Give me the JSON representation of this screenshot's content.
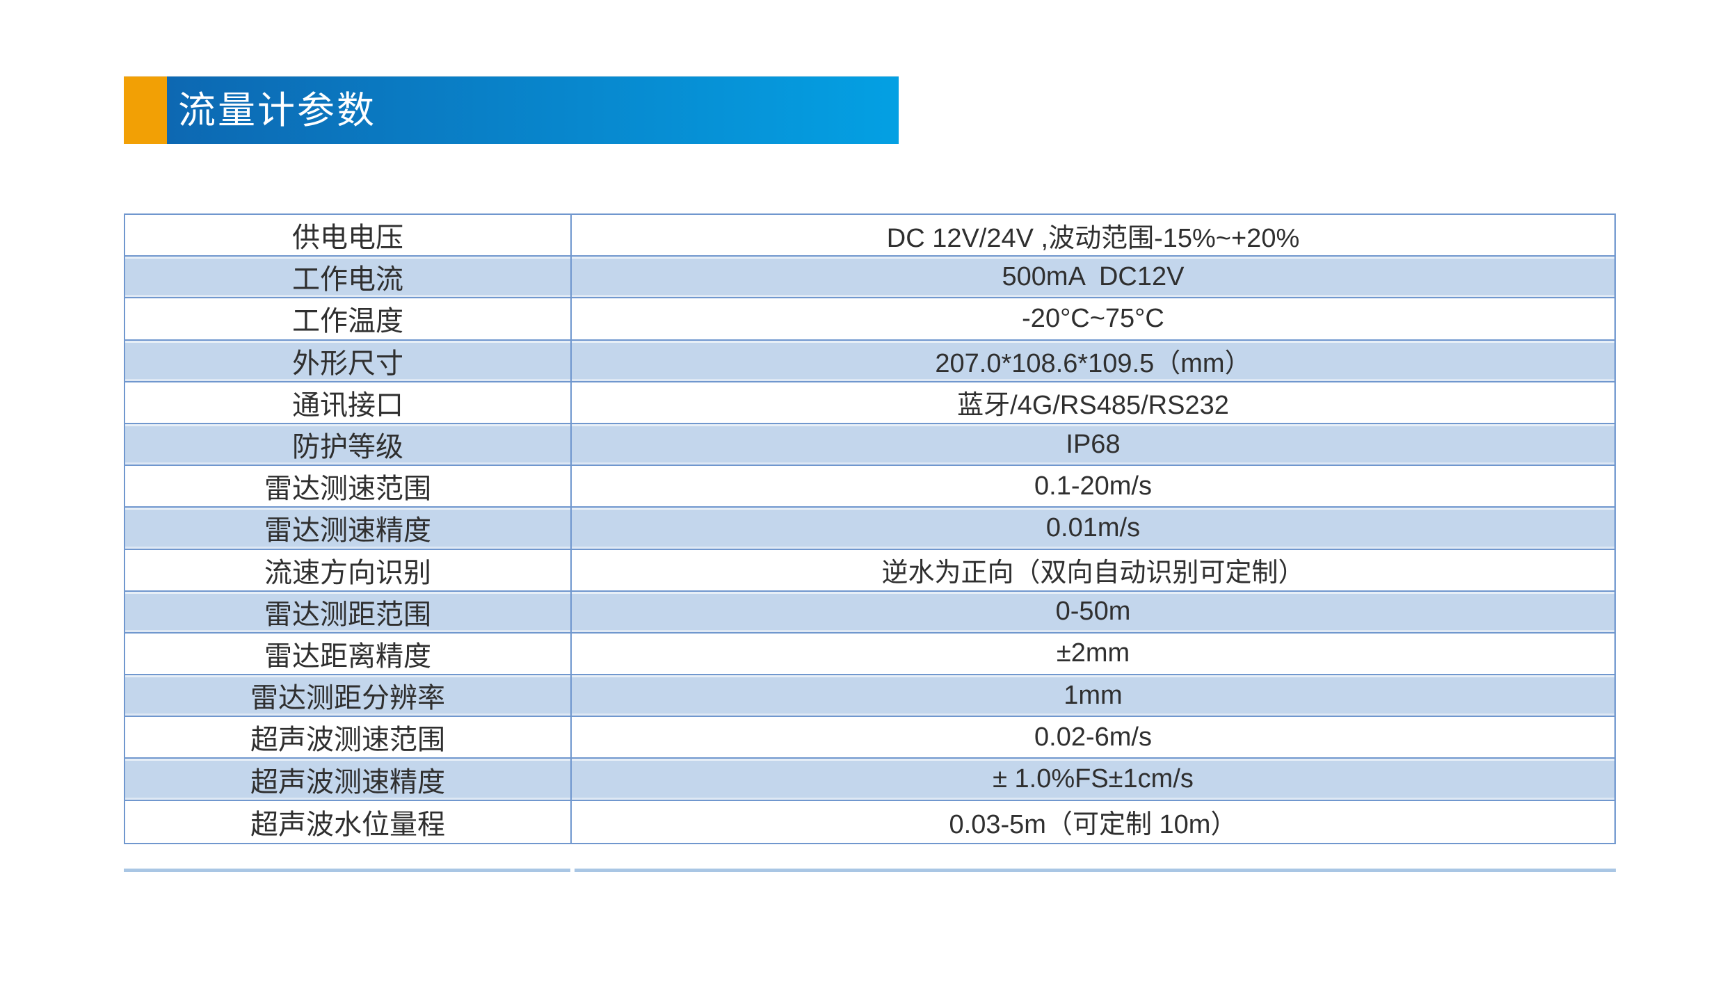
{
  "header": {
    "title": "流量计参数",
    "accent_color": "#F2A005",
    "gradient_start": "#0D68B2",
    "gradient_end": "#04A0E3",
    "title_color": "#ffffff"
  },
  "table": {
    "border_color": "#7097CE",
    "zebra_fill_color": "#C3D6EC",
    "text_color": "#2F2F2F",
    "rows": [
      {
        "label": "供电电压",
        "value": "DC 12V/24V ,波动范围-15%~+20%"
      },
      {
        "label": "工作电流",
        "value": "500mA  DC12V"
      },
      {
        "label": "工作温度",
        "value": "-20°C~75°C"
      },
      {
        "label": "外形尺寸",
        "value": "207.0*108.6*109.5（mm）"
      },
      {
        "label": "通讯接口",
        "value": "蓝牙/4G/RS485/RS232"
      },
      {
        "label": "防护等级",
        "value": "IP68"
      },
      {
        "label": "雷达测速范围",
        "value": "0.1-20m/s"
      },
      {
        "label": "雷达测速精度",
        "value": "0.01m/s"
      },
      {
        "label": "流速方向识别",
        "value": "逆水为正向（双向自动识别可定制）"
      },
      {
        "label": "雷达测距范围",
        "value": "0-50m"
      },
      {
        "label": "雷达距离精度",
        "value": "±2mm"
      },
      {
        "label": "雷达测距分辨率",
        "value": "1mm"
      },
      {
        "label": "超声波测速范围",
        "value": "0.02-6m/s"
      },
      {
        "label": "超声波测速精度",
        "value": "± 1.0%FS±1cm/s"
      },
      {
        "label": "超声波水位量程",
        "value": "0.03-5m（可定制 10m）"
      }
    ]
  }
}
